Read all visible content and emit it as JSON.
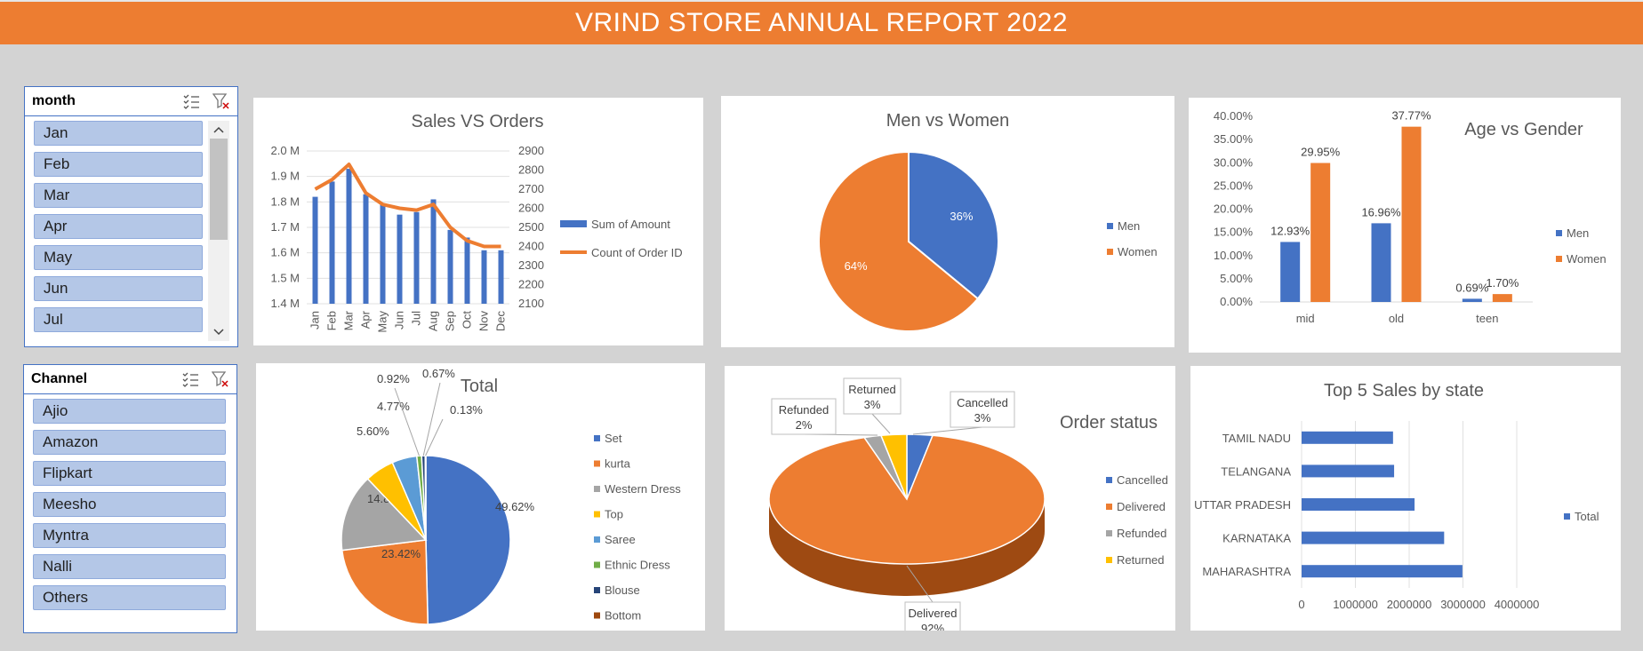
{
  "title": "VRIND STORE ANNUAL REPORT 2022",
  "colors": {
    "blue": "#4472c4",
    "orange": "#ed7d31",
    "gray": "#a5a5a5",
    "yellow": "#ffc000",
    "lightblue": "#5b9bd5",
    "green": "#70ad47",
    "navy": "#264478",
    "brown": "#9e480e",
    "banner": "#ed7d31"
  },
  "month_slicer": {
    "header": "month",
    "icons": [
      "multi-select-icon",
      "clear-filter-icon"
    ],
    "items": [
      "Jan",
      "Feb",
      "Mar",
      "Apr",
      "May",
      "Jun",
      "Jul"
    ]
  },
  "channel_slicer": {
    "header": "Channel",
    "icons": [
      "multi-select-icon",
      "clear-filter-icon"
    ],
    "items": [
      "Ajio",
      "Amazon",
      "Flipkart",
      "Meesho",
      "Myntra",
      "Nalli",
      "Others"
    ]
  },
  "chart_data": [
    {
      "id": "sales_orders",
      "type": "bar+line",
      "title": "Sales VS Orders",
      "categories": [
        "Jan",
        "Feb",
        "Mar",
        "Apr",
        "May",
        "Jun",
        "Jul",
        "Aug",
        "Sep",
        "Oct",
        "Nov",
        "Dec"
      ],
      "y_ticks": [
        "2.0 M",
        "1.9 M",
        "1.8 M",
        "1.7 M",
        "1.6 M",
        "1.5 M",
        "1.4 M"
      ],
      "y2_ticks": [
        "2900",
        "2800",
        "2700",
        "2600",
        "2500",
        "2400",
        "2300",
        "2200",
        "2100"
      ],
      "ylim": [
        1.4,
        2.0
      ],
      "y2lim": [
        2100,
        2900
      ],
      "series": [
        {
          "name": "Sum of Amount",
          "type": "bar",
          "values": [
            1.82,
            1.88,
            1.93,
            1.83,
            1.79,
            1.75,
            1.76,
            1.81,
            1.69,
            1.66,
            1.61,
            1.61
          ]
        },
        {
          "name": "Count of Order ID",
          "type": "line",
          "values": [
            2700,
            2750,
            2830,
            2680,
            2620,
            2600,
            2590,
            2620,
            2500,
            2430,
            2400,
            2400
          ]
        }
      ],
      "grid": true,
      "legend": "right"
    },
    {
      "id": "men_women",
      "type": "pie",
      "title": "Men vs Women",
      "labels": [
        "Men",
        "Women"
      ],
      "values": [
        36,
        64
      ],
      "data_labels": [
        "36%",
        "64%"
      ],
      "legend": "right"
    },
    {
      "id": "age_gender",
      "type": "bar",
      "title": "Age vs Gender",
      "categories": [
        "mid",
        "old",
        "teen"
      ],
      "y_ticks": [
        "40.00%",
        "35.00%",
        "30.00%",
        "25.00%",
        "20.00%",
        "15.00%",
        "10.00%",
        "5.00%",
        "0.00%"
      ],
      "ylim": [
        0,
        40
      ],
      "series": [
        {
          "name": "Men",
          "values": [
            12.93,
            16.96,
            0.69
          ],
          "labels": [
            "12.93%",
            "16.96%",
            "0.69%"
          ]
        },
        {
          "name": "Women",
          "values": [
            29.95,
            37.77,
            1.7
          ],
          "labels": [
            "29.95%",
            "37.77%",
            "1.70%"
          ]
        }
      ],
      "legend": "right"
    },
    {
      "id": "total",
      "type": "pie",
      "title": "Total",
      "labels": [
        "Set",
        "kurta",
        "Western Dress",
        "Top",
        "Saree",
        "Ethnic Dress",
        "Blouse",
        "Bottom"
      ],
      "values": [
        49.62,
        23.42,
        14.87,
        5.6,
        4.77,
        0.92,
        0.67,
        0.13
      ],
      "data_labels": [
        "49.62%",
        "23.42%",
        "14.87%",
        "5.60%",
        "4.77%",
        "0.92%",
        "0.67%",
        "0.13%"
      ],
      "legend": "right"
    },
    {
      "id": "order_status",
      "type": "pie",
      "title": "Order status",
      "labels": [
        "Cancelled",
        "Delivered",
        "Refunded",
        "Returned"
      ],
      "values": [
        3,
        92,
        2,
        3
      ],
      "data_labels": [
        "Cancelled\n3%",
        "Delivered\n92%",
        "Refunded\n2%",
        "Returned\n3%"
      ],
      "legend": "right"
    },
    {
      "id": "top_states",
      "type": "bar",
      "orientation": "horizontal",
      "title": "Top 5 Sales by state",
      "categories": [
        "TAMIL NADU",
        "TELANGANA",
        "UTTAR PRADESH",
        "KARNATAKA",
        "MAHARASHTRA"
      ],
      "series": [
        {
          "name": "Total",
          "values": [
            1700000,
            1720000,
            2100000,
            2650000,
            2990000
          ]
        }
      ],
      "x_ticks": [
        "0",
        "1000000",
        "2000000",
        "3000000",
        "4000000"
      ],
      "xlim": [
        0,
        4000000
      ],
      "legend": "right"
    }
  ]
}
